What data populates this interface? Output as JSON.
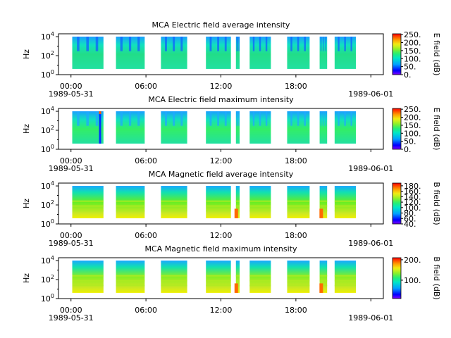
{
  "chart_data": [
    {
      "type": "heatmap",
      "title": "MCA  Electric field average intensity",
      "ylabel": "Hz",
      "colorbar_label": "E field (dB)",
      "colorbar_ticks": [
        "0.",
        "50.",
        "100.",
        "150.",
        "200.",
        "250."
      ],
      "colorbar_range": [
        0,
        255
      ],
      "colormap": "rainbow",
      "ylim_exponent": [
        0,
        4.3
      ],
      "y_ticks": [
        {
          "base": "10",
          "exp": "0"
        },
        {
          "base": "10",
          "exp": "2"
        },
        {
          "base": "10",
          "exp": "4"
        }
      ],
      "x_ticks": [
        "00:00",
        "06:00",
        "12:00",
        "18:00",
        ""
      ],
      "x_start_date": "1989-05-31",
      "x_end_date": "1989-06-01",
      "dominant_color": "#22dd88",
      "hot_spots": []
    },
    {
      "type": "heatmap",
      "title": "MCA  Electric field maximum intensity",
      "ylabel": "Hz",
      "colorbar_label": "E field (dB)",
      "colorbar_ticks": [
        "0.",
        "50.",
        "100.",
        "150.",
        "200.",
        "250."
      ],
      "colorbar_range": [
        0,
        255
      ],
      "colormap": "rainbow",
      "ylim_exponent": [
        0,
        4.3
      ],
      "y_ticks": [
        {
          "base": "10",
          "exp": "0"
        },
        {
          "base": "10",
          "exp": "2"
        },
        {
          "base": "10",
          "exp": "4"
        }
      ],
      "x_ticks": [
        "00:00",
        "06:00",
        "12:00",
        "18:00",
        ""
      ],
      "x_start_date": "1989-05-31",
      "x_end_date": "1989-06-01",
      "dominant_color": "#33ee66",
      "hot_spots": [
        2.3
      ]
    },
    {
      "type": "heatmap",
      "title": "MCA  Magnetic field average intensity",
      "ylabel": "Hz",
      "colorbar_label": "B field (dB)",
      "colorbar_ticks": [
        "40.",
        "60.",
        "80.",
        "100.",
        "120.",
        "140.",
        "160.",
        "180."
      ],
      "colorbar_range": [
        40,
        190
      ],
      "colormap": "rainbow",
      "ylim_exponent": [
        0,
        4.3
      ],
      "y_ticks": [
        {
          "base": "10",
          "exp": "0"
        },
        {
          "base": "10",
          "exp": "2"
        },
        {
          "base": "10",
          "exp": "4"
        }
      ],
      "x_ticks": [
        "00:00",
        "06:00",
        "12:00",
        "18:00",
        ""
      ],
      "x_start_date": "1989-05-31",
      "x_end_date": "1989-06-01",
      "dominant_color": "#66ee22",
      "hot_spots": [
        13.2,
        20.0
      ]
    },
    {
      "type": "heatmap",
      "title": "MCA  Magnetic field maximum intensity",
      "ylabel": "Hz",
      "colorbar_label": "B field (dB)",
      "colorbar_ticks": [
        "100.",
        "200."
      ],
      "colorbar_range": [
        10,
        210
      ],
      "colormap": "rainbow",
      "ylim_exponent": [
        0,
        4.3
      ],
      "y_ticks": [
        {
          "base": "10",
          "exp": "0"
        },
        {
          "base": "10",
          "exp": "2"
        },
        {
          "base": "10",
          "exp": "4"
        }
      ],
      "x_ticks": [
        "00:00",
        "06:00",
        "12:00",
        "18:00",
        ""
      ],
      "x_start_date": "1989-05-31",
      "x_end_date": "1989-06-01",
      "dominant_color": "#88ee22",
      "hot_spots": [
        13.2,
        20.0
      ]
    }
  ],
  "data_segments_hours": [
    [
      0.1,
      2.6
    ],
    [
      3.6,
      5.9
    ],
    [
      7.2,
      9.3
    ],
    [
      10.8,
      12.8
    ],
    [
      13.2,
      13.5
    ],
    [
      14.3,
      16.0
    ],
    [
      17.3,
      19.1
    ],
    [
      19.9,
      20.5
    ],
    [
      21.1,
      22.8
    ]
  ],
  "x_range_hours": [
    -1.0,
    25.0
  ]
}
